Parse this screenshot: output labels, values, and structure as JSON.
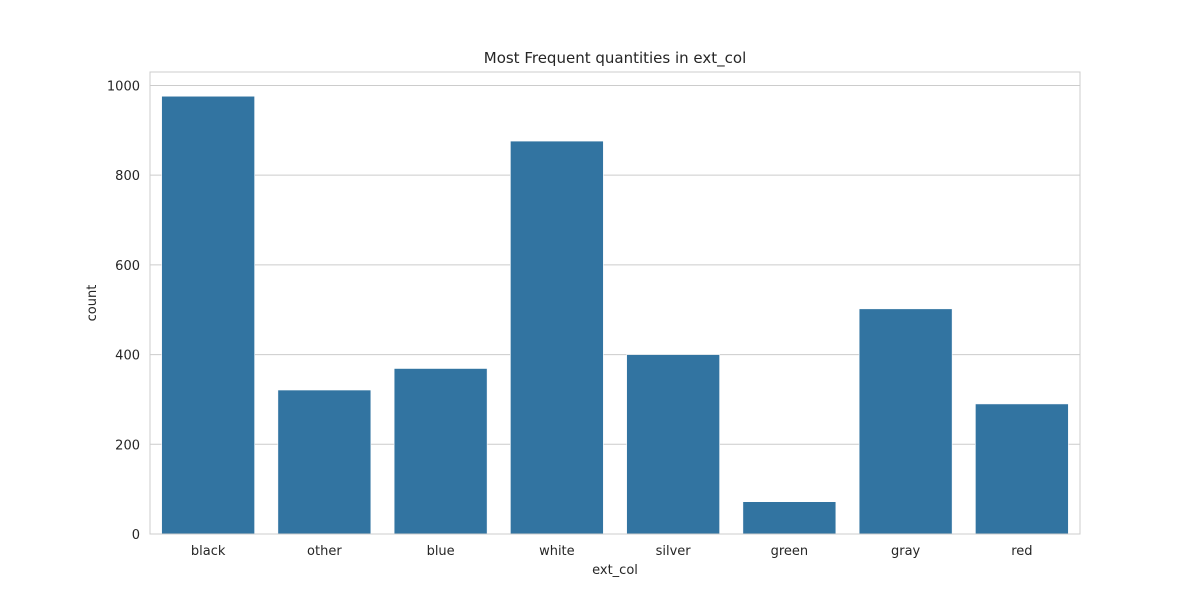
{
  "chart_data": {
    "type": "bar",
    "title": "Most Frequent quantities in ext_col",
    "xlabel": "ext_col",
    "ylabel": "count",
    "categories": [
      "black",
      "other",
      "blue",
      "white",
      "silver",
      "green",
      "gray",
      "red"
    ],
    "values": [
      976,
      321,
      369,
      876,
      400,
      72,
      502,
      290
    ],
    "ylim": [
      0,
      1030
    ],
    "yticks": [
      0,
      200,
      400,
      600,
      800,
      1000
    ],
    "grid": true,
    "bar_color": "#3274a1"
  }
}
